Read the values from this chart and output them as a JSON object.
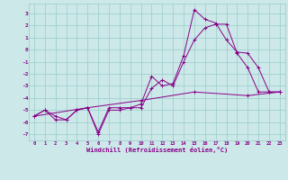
{
  "title": "",
  "xlabel": "Windchill (Refroidissement éolien,°C)",
  "ylabel": "",
  "xlim": [
    -0.5,
    23.5
  ],
  "ylim": [
    -7.5,
    3.8
  ],
  "bg_color": "#cce8e8",
  "grid_color": "#99cccc",
  "line_color": "#880088",
  "line1_x": [
    0,
    1,
    2,
    3,
    4,
    5,
    6,
    7,
    8,
    9,
    10,
    11,
    12,
    13,
    14,
    15,
    16,
    17,
    18,
    19,
    20,
    21,
    22,
    23
  ],
  "line1_y": [
    -5.5,
    -5.0,
    -5.8,
    -5.8,
    -5.0,
    -4.8,
    -6.8,
    -4.8,
    -4.8,
    -4.8,
    -4.5,
    -2.2,
    -3.0,
    -2.8,
    -0.5,
    3.3,
    2.5,
    2.2,
    0.8,
    -0.2,
    -0.3,
    -1.5,
    -3.5,
    -3.5
  ],
  "line2_x": [
    0,
    1,
    2,
    3,
    4,
    5,
    6,
    7,
    8,
    9,
    10,
    11,
    12,
    13,
    14,
    15,
    16,
    17,
    18,
    19,
    20,
    21,
    22,
    23
  ],
  "line2_y": [
    -5.5,
    -5.0,
    -5.5,
    -5.8,
    -5.0,
    -4.8,
    -7.0,
    -5.0,
    -5.0,
    -4.8,
    -4.8,
    -3.2,
    -2.5,
    -3.0,
    -1.0,
    0.8,
    1.8,
    2.1,
    2.1,
    -0.3,
    -1.5,
    -3.5,
    -3.5,
    -3.5
  ],
  "line3_x": [
    0,
    5,
    10,
    15,
    20,
    23
  ],
  "line3_y": [
    -5.5,
    -4.8,
    -4.2,
    -3.5,
    -3.8,
    -3.5
  ],
  "ytick_values": [
    -7,
    -6,
    -5,
    -4,
    -3,
    -2,
    -1,
    0,
    1,
    2,
    3
  ],
  "xtick_values": [
    0,
    1,
    2,
    3,
    4,
    5,
    6,
    7,
    8,
    9,
    10,
    11,
    12,
    13,
    14,
    15,
    16,
    17,
    18,
    19,
    20,
    21,
    22,
    23
  ],
  "marker": "+"
}
